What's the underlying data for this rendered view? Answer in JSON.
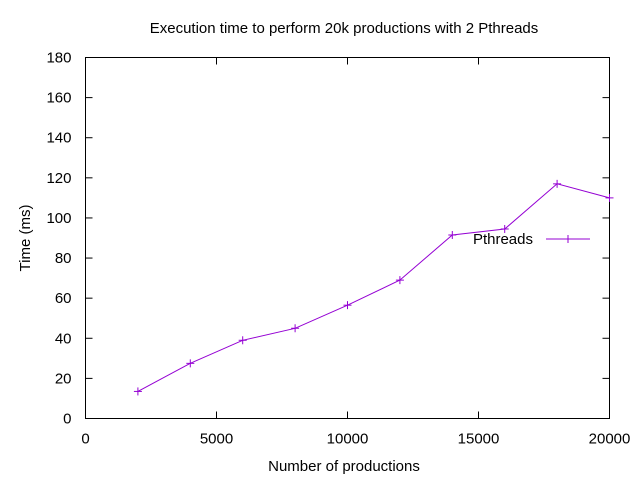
{
  "chart_data": {
    "type": "line",
    "title": "Execution time to perform 20k productions with 2 Pthreads",
    "xlabel": "Number of productions",
    "ylabel": "Time (ms)",
    "xlim": [
      0,
      20000
    ],
    "ylim": [
      0,
      180
    ],
    "xticks": [
      0,
      5000,
      10000,
      15000,
      20000
    ],
    "yticks": [
      0,
      20,
      40,
      60,
      80,
      100,
      120,
      140,
      160,
      180
    ],
    "grid": false,
    "legend_position": "top-right",
    "series": [
      {
        "name": "Pthreads",
        "color": "#9400d3",
        "marker": "plus",
        "x": [
          2000,
          4000,
          6000,
          8000,
          10000,
          12000,
          14000,
          16000,
          18000,
          20000
        ],
        "y": [
          13.5,
          27.5,
          39,
          45,
          56.5,
          69,
          91.5,
          94.5,
          117,
          110
        ]
      }
    ]
  }
}
